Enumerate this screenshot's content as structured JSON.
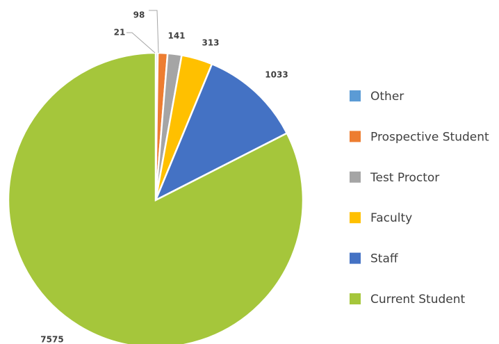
{
  "chart_data": {
    "type": "pie",
    "categories": [
      "Other",
      "Prospective Student",
      "Test Proctor",
      "Faculty",
      "Staff",
      "Current Student"
    ],
    "values": [
      21,
      98,
      141,
      313,
      1033,
      7575
    ],
    "colors": [
      "#5b9bd5",
      "#ed7d31",
      "#a5a5a5",
      "#ffc000",
      "#4472c4",
      "#a5c63b"
    ]
  }
}
